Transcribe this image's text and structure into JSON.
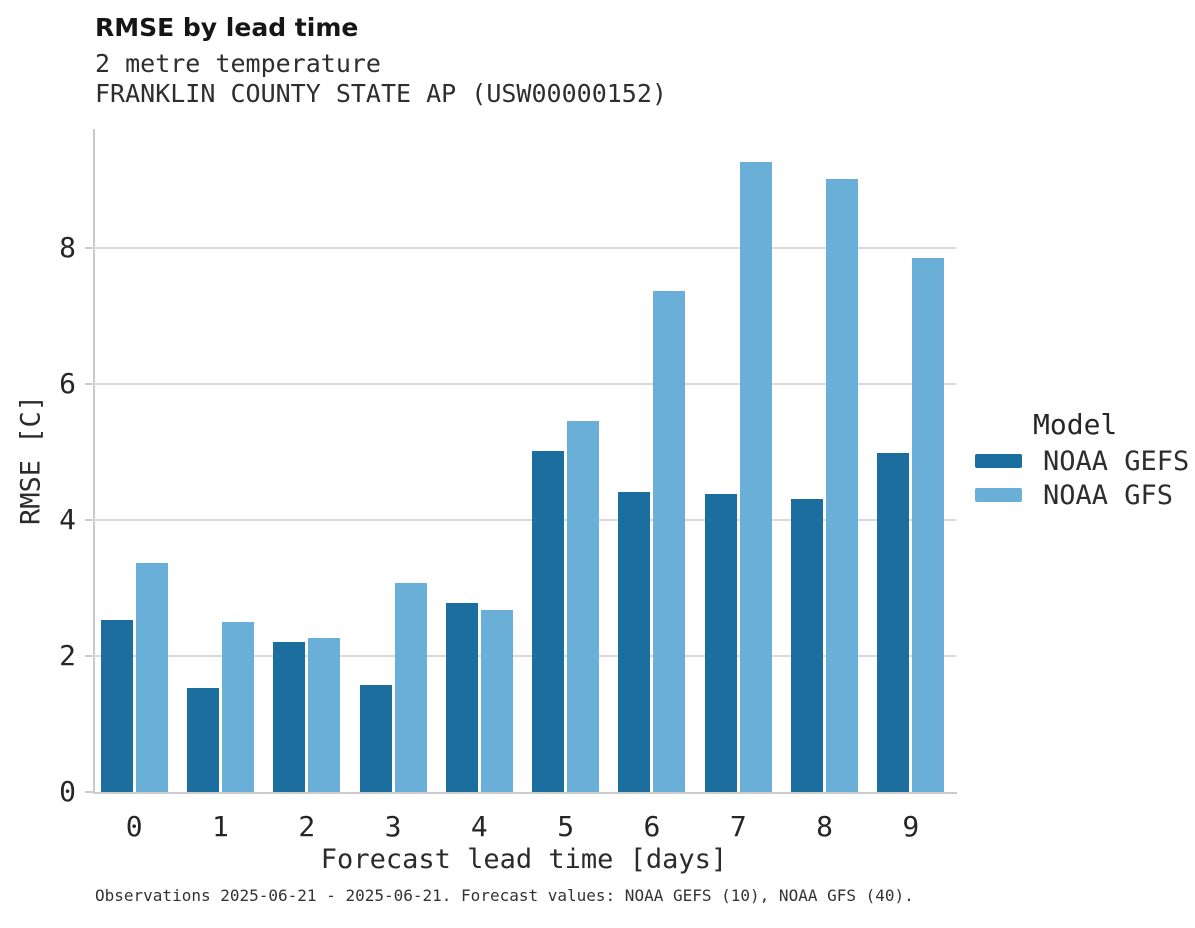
{
  "chart_data": {
    "type": "bar",
    "title": "RMSE by lead time",
    "subtitle": "2 metre temperature",
    "station": "FRANKLIN COUNTY STATE AP (USW00000152)",
    "xlabel": "Forecast lead time [days]",
    "ylabel": "RMSE [C]",
    "categories": [
      "0",
      "1",
      "2",
      "3",
      "4",
      "5",
      "6",
      "7",
      "8",
      "9"
    ],
    "series": [
      {
        "name": "NOAA GEFS",
        "color": "#1c6e9e",
        "values": [
          2.53,
          1.53,
          2.2,
          1.57,
          2.78,
          5.02,
          4.41,
          4.38,
          4.31,
          4.99
        ]
      },
      {
        "name": "NOAA GFS",
        "color": "#69afd8",
        "values": [
          3.37,
          2.5,
          2.27,
          3.08,
          2.68,
          5.45,
          7.37,
          9.27,
          9.01,
          7.86
        ]
      }
    ],
    "yticks": [
      0,
      2,
      4,
      6,
      8
    ],
    "ylim": [
      0,
      9.75
    ],
    "grid": "horizontal",
    "legend_title": "Model",
    "legend_position": "right",
    "footer": "Observations 2025-06-21 - 2025-06-21. Forecast values: NOAA GEFS (10), NOAA GFS (40)."
  }
}
